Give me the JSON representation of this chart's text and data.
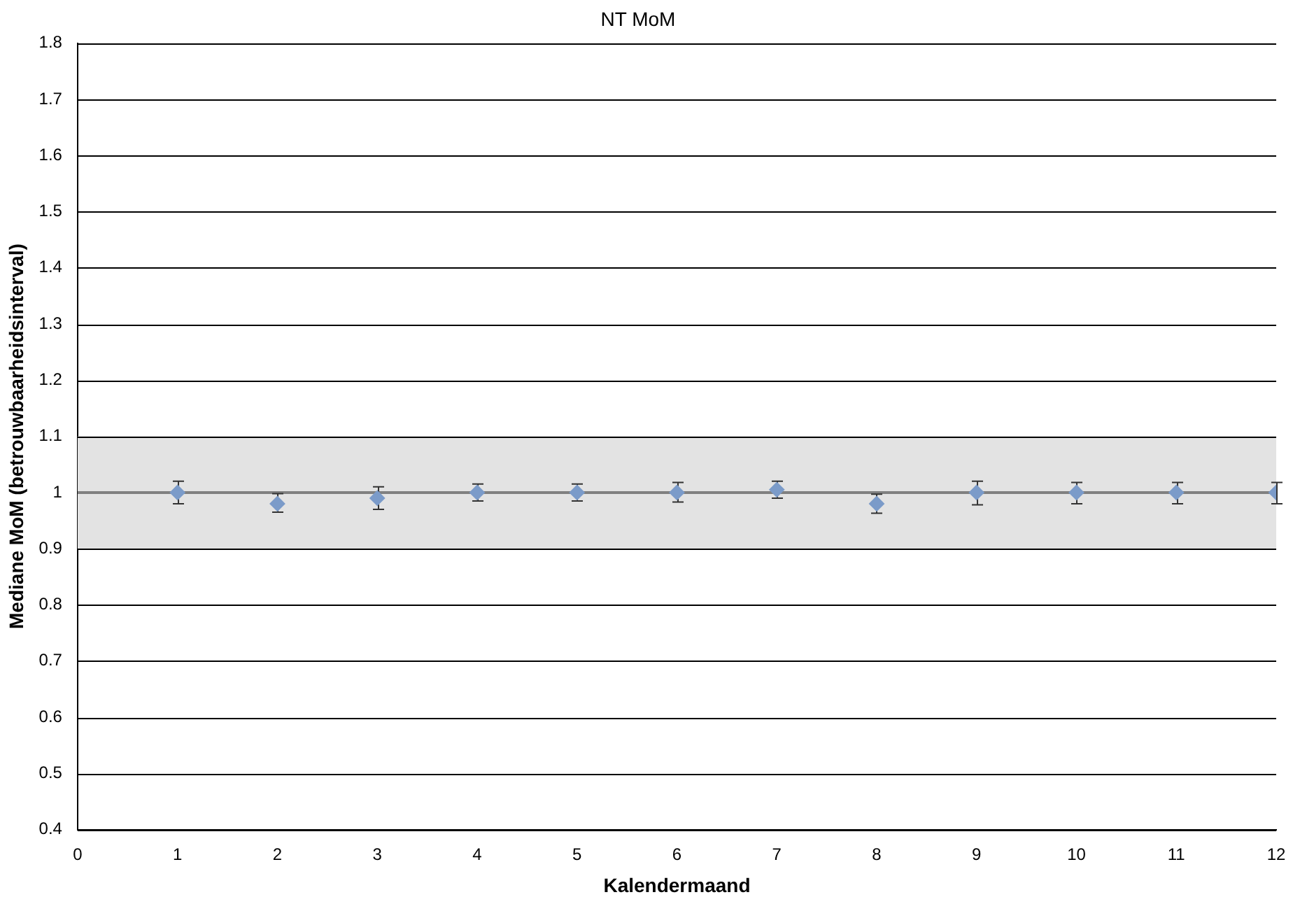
{
  "chart_data": {
    "type": "scatter",
    "title": "NT MoM",
    "xlabel": "Kalendermaand",
    "ylabel": "Mediane MoM (betrouwbaarheidsinterval)",
    "x": [
      1,
      2,
      3,
      4,
      5,
      6,
      7,
      8,
      9,
      10,
      11,
      12
    ],
    "series": [
      {
        "color": "#7b9bc9",
        "values": [
          1.0,
          0.98,
          0.99,
          1.0,
          1.0,
          1.0,
          1.005,
          0.98,
          1.0,
          1.0,
          1.0,
          1.0
        ],
        "errors": [
          [
            0.98,
            1.02
          ],
          [
            0.965,
            0.998
          ],
          [
            0.97,
            1.01
          ],
          [
            0.985,
            1.015
          ],
          [
            0.985,
            1.015
          ],
          [
            0.983,
            1.018
          ],
          [
            0.99,
            1.02
          ],
          [
            0.963,
            0.997
          ],
          [
            0.978,
            1.02
          ],
          [
            0.98,
            1.018
          ],
          [
            0.98,
            1.018
          ],
          [
            0.98,
            1.018
          ]
        ]
      }
    ],
    "xlim": [
      0,
      12
    ],
    "xticks": [
      0,
      1,
      2,
      3,
      4,
      5,
      6,
      7,
      8,
      9,
      10,
      11,
      12
    ],
    "ylim": [
      0.4,
      1.8
    ],
    "yticks": [
      0.4,
      0.5,
      0.6,
      0.7,
      0.8,
      0.9,
      1,
      1.1,
      1.2,
      1.3,
      1.4,
      1.5,
      1.6,
      1.7,
      1.8
    ],
    "bands": [
      {
        "axis": "y",
        "from": 0.9,
        "to": 1.1,
        "color": "#e3e3e3"
      }
    ],
    "ref_lines": [
      {
        "axis": "y",
        "value": 1,
        "color": "#808080"
      }
    ],
    "grid": "y",
    "marker": "diamond",
    "legend": false
  }
}
